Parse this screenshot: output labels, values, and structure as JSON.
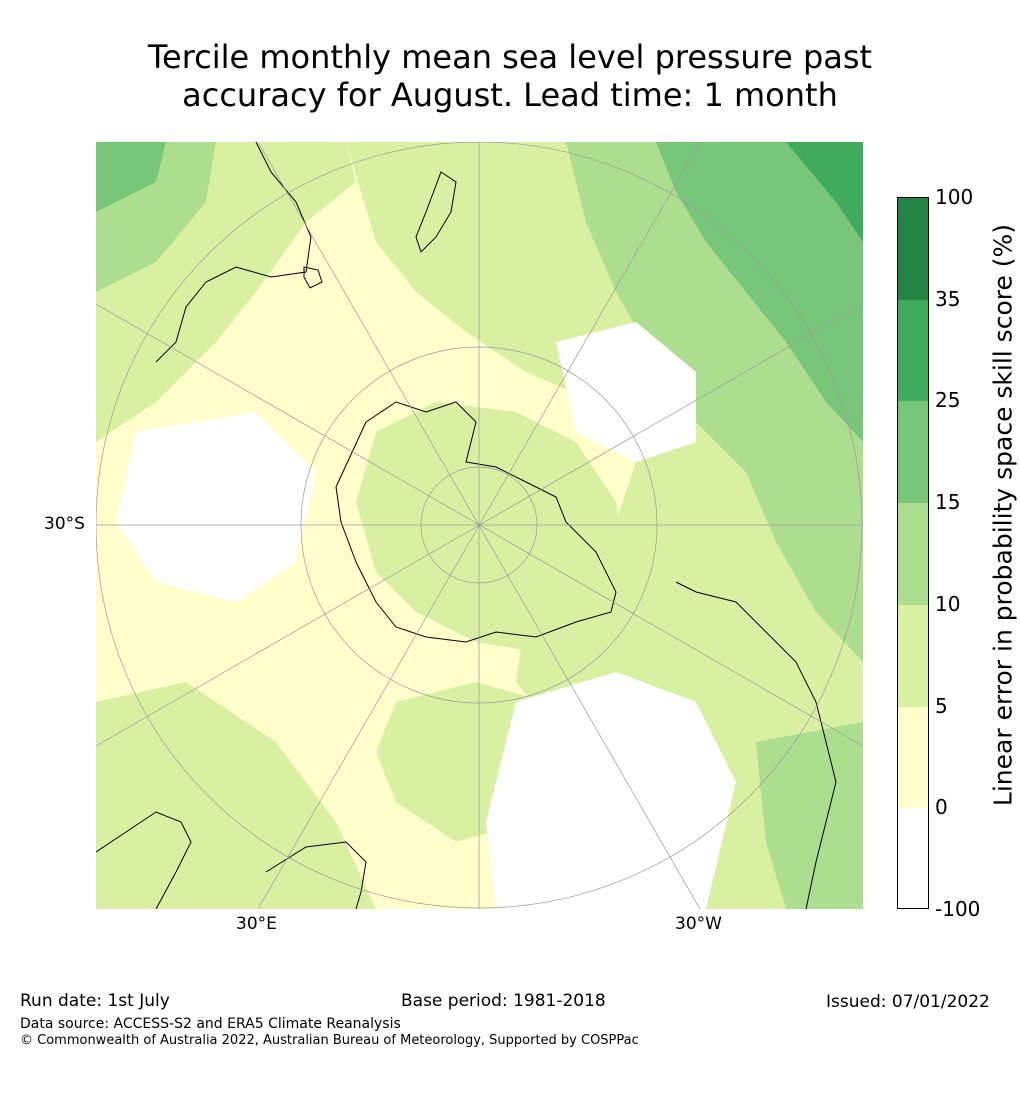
{
  "title_line1": "Tercile monthly mean sea level pressure past",
  "title_line2": "accuracy for August. Lead time: 1 month",
  "map": {
    "tick_labels": {
      "left": "30°S",
      "bottom_left": "30°E",
      "bottom_right": "30°W"
    },
    "category_colors": [
      "#ffffff",
      "#ffffcc",
      "#d9f0a3",
      "#addd8e",
      "#78c679",
      "#41ab5d",
      "#238443"
    ]
  },
  "colorbar": {
    "label": "Linear error in probability space skill score (%)",
    "ticks": [
      "-100",
      "0",
      "5",
      "10",
      "15",
      "25",
      "35",
      "100"
    ],
    "colors": [
      "#ffffff",
      "#ffffcc",
      "#d9f0a3",
      "#addd8e",
      "#78c679",
      "#41ab5d",
      "#238443"
    ]
  },
  "footer": {
    "run_date": "Run date: 1st July",
    "base_period": "Base period: 1981-2018",
    "issued": "Issued: 07/01/2022",
    "data_source": "Data source: ACCESS-S2 and ERA5 Climate Reanalysis",
    "copyright": "© Commonwealth of Australia 2022, Australian Bureau of Meteorology, Supported by COSPPac"
  }
}
